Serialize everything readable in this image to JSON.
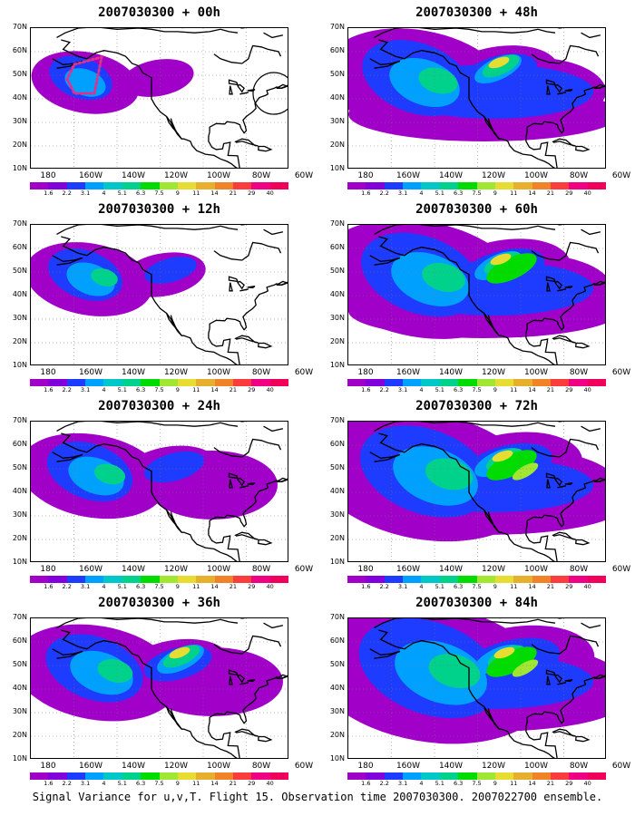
{
  "panels": [
    {
      "title": "2007030300 + 00h",
      "level": 0
    },
    {
      "title": "2007030300 + 48h",
      "level": 4
    },
    {
      "title": "2007030300 + 12h",
      "level": 1
    },
    {
      "title": "2007030300 + 60h",
      "level": 5
    },
    {
      "title": "2007030300 + 24h",
      "level": 2
    },
    {
      "title": "2007030300 + 72h",
      "level": 6
    },
    {
      "title": "2007030300 + 36h",
      "level": 3
    },
    {
      "title": "2007030300 + 84h",
      "level": 7
    }
  ],
  "lat_labels": [
    "70N",
    "60N",
    "50N",
    "40N",
    "30N",
    "20N",
    "10N"
  ],
  "lon_labels": [
    "180",
    "160W",
    "140W",
    "120W",
    "100W",
    "80W",
    "60W"
  ],
  "colorbar": {
    "labels": [
      "1.6",
      "2.2",
      "3.1",
      "4",
      "5.1",
      "6.3",
      "7.5",
      "9",
      "11",
      "14",
      "21",
      "29",
      "40"
    ],
    "colors": [
      "#a000c8",
      "#8200dc",
      "#1e3cff",
      "#00a0ff",
      "#00c8c8",
      "#00d28c",
      "#00dc00",
      "#a0e632",
      "#e6dc32",
      "#e6af2d",
      "#f08228",
      "#fa3c3c",
      "#f00082"
    ]
  },
  "caption": "Signal Variance for u,v,T. Flight 15. Observation time 2007030300. 2007022700 ensemble."
}
